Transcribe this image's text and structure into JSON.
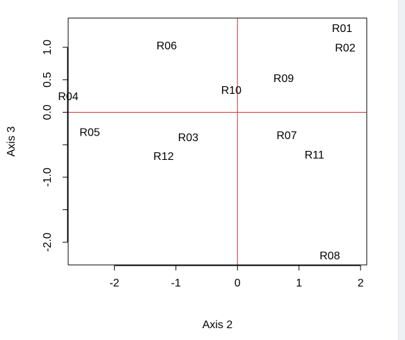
{
  "chart_data": {
    "type": "scatter",
    "title": "",
    "xlabel": "Axis 2",
    "ylabel": "Axis 3",
    "xlim": [
      -2.75,
      2.1
    ],
    "ylim": [
      -2.35,
      1.45
    ],
    "xticks": [
      -2,
      -1,
      0,
      1,
      2
    ],
    "xtick_labels": [
      "-2",
      "-1",
      "0",
      "1",
      "2"
    ],
    "yticks": [
      -2.0,
      -1.5,
      -1.0,
      -0.5,
      0.0,
      0.5,
      1.0
    ],
    "ytick_labels": [
      "-2.0",
      "",
      "-1.0",
      "",
      "0.0",
      "0.5",
      "1.0"
    ],
    "grid": false,
    "reference_lines": {
      "x": 0,
      "y": 0,
      "color": "#cc3333"
    },
    "points": [
      {
        "label": "R01",
        "x": 1.7,
        "y": 1.3
      },
      {
        "label": "R02",
        "x": 1.75,
        "y": 1.0
      },
      {
        "label": "R03",
        "x": -0.8,
        "y": -0.38
      },
      {
        "label": "R04",
        "x": -2.75,
        "y": 0.25
      },
      {
        "label": "R05",
        "x": -2.4,
        "y": -0.3
      },
      {
        "label": "R06",
        "x": -1.15,
        "y": 1.03
      },
      {
        "label": "R07",
        "x": 0.8,
        "y": -0.35
      },
      {
        "label": "R08",
        "x": 1.5,
        "y": -2.2
      },
      {
        "label": "R09",
        "x": 0.75,
        "y": 0.53
      },
      {
        "label": "R10",
        "x": -0.1,
        "y": 0.35
      },
      {
        "label": "R11",
        "x": 1.25,
        "y": -0.65
      },
      {
        "label": "R12",
        "x": -1.2,
        "y": -0.67
      }
    ]
  }
}
